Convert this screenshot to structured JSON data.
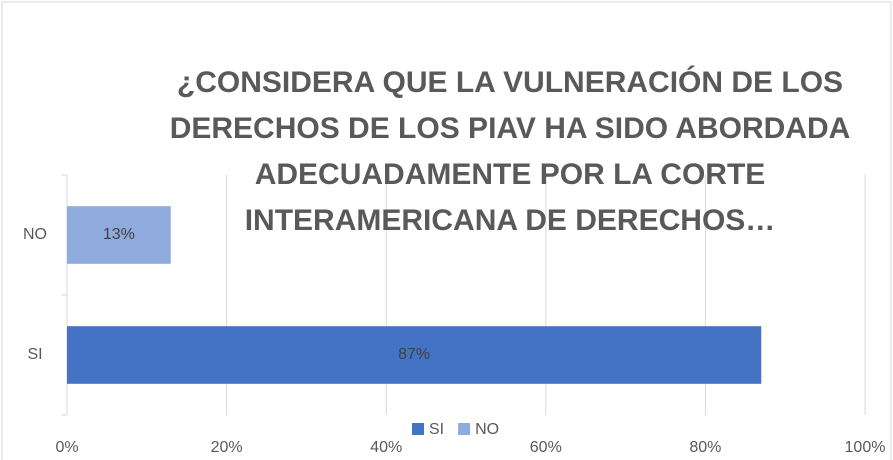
{
  "chart_data": {
    "type": "barh",
    "title": [
      "¿CONSIDERA QUE LA VULNERACIÓN DE LOS",
      "DERECHOS DE LOS PIAV HA SIDO ABORDADA",
      "ADECUADAMENTE POR LA CORTE",
      "INTERAMERICANA DE DERECHOS…"
    ],
    "categories": [
      "NO",
      "SI"
    ],
    "values": [
      13,
      87
    ],
    "value_labels": [
      "13%",
      "87%"
    ],
    "colors": [
      "#8faadc",
      "#4472c4"
    ],
    "legend_order": [
      1,
      0
    ],
    "xlim": [
      0,
      100
    ],
    "xticks": [
      {
        "value": 0,
        "label": "0%"
      },
      {
        "value": 20,
        "label": "20%"
      },
      {
        "value": 40,
        "label": "40%"
      },
      {
        "value": 60,
        "label": "60%"
      },
      {
        "value": 80,
        "label": "80%"
      },
      {
        "value": 100,
        "label": "100%"
      }
    ],
    "grid": true,
    "legend": "bottom"
  }
}
